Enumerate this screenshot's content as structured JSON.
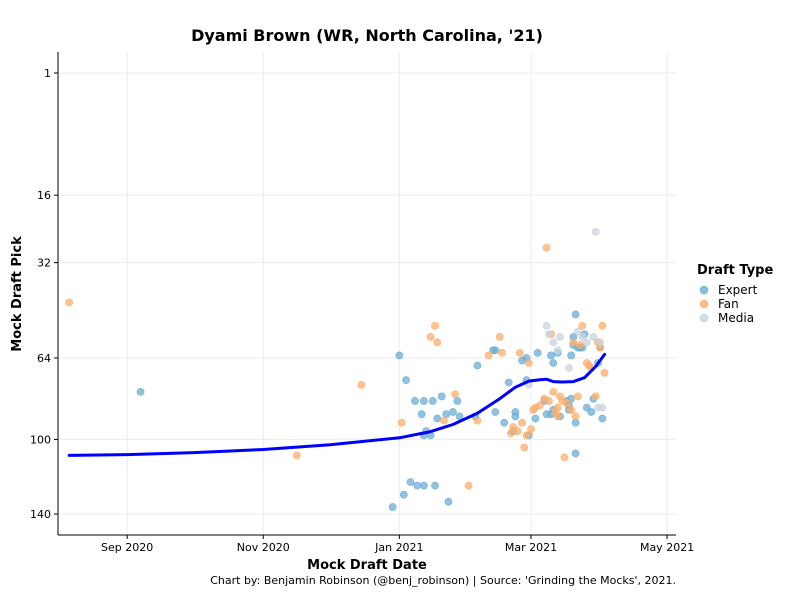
{
  "chart_data": {
    "type": "scatter",
    "title": "Dyami Brown (WR, North Carolina, '21)",
    "xlabel": "Mock Draft Date",
    "ylabel": "Mock Draft Pick",
    "caption": "Chart by: Benjamin Robinson (@benj_robinson) | Source: 'Grinding the Mocks', 2021.",
    "y_scale": "sqrt",
    "y_reversed": true,
    "ylim": [
      140,
      1
    ],
    "y_ticks": [
      1,
      16,
      32,
      64,
      100,
      140
    ],
    "xlim": [
      "2020-08-01",
      "2021-05-05"
    ],
    "x_ticks": [
      {
        "date": "2020-09-01",
        "label": "Sep 2020"
      },
      {
        "date": "2020-11-01",
        "label": "Nov 2020"
      },
      {
        "date": "2021-01-01",
        "label": "Jan 2021"
      },
      {
        "date": "2021-03-01",
        "label": "Mar 2021"
      },
      {
        "date": "2021-05-01",
        "label": "May 2021"
      }
    ],
    "grid": true,
    "legend": {
      "title": "Draft Type",
      "placement": "right"
    },
    "series": [
      {
        "name": "Expert",
        "color": "#6BAED6",
        "points": [
          [
            "2020-09-07",
            78
          ],
          [
            "2021-01-12",
            82
          ],
          [
            "2021-01-20",
            80
          ],
          [
            "2021-01-27",
            82
          ],
          [
            "2021-02-04",
            89
          ],
          [
            "2021-02-05",
            67
          ],
          [
            "2021-02-12",
            61
          ],
          [
            "2021-02-13",
            61
          ],
          [
            "2021-02-13",
            87
          ],
          [
            "2021-02-17",
            92
          ],
          [
            "2021-02-19",
            74
          ],
          [
            "2021-02-21",
            96
          ],
          [
            "2021-02-22",
            89
          ],
          [
            "2021-02-22",
            87
          ],
          [
            "2021-02-25",
            65
          ],
          [
            "2021-02-27",
            73
          ],
          [
            "2021-02-27",
            64
          ],
          [
            "2021-02-28",
            98
          ],
          [
            "2021-03-03",
            90
          ],
          [
            "2021-03-04",
            62
          ],
          [
            "2021-03-07",
            82
          ],
          [
            "2021-03-08",
            88
          ],
          [
            "2021-03-10",
            63
          ],
          [
            "2021-03-10",
            88
          ],
          [
            "2021-03-11",
            86
          ],
          [
            "2021-03-11",
            66
          ],
          [
            "2021-03-13",
            62
          ],
          [
            "2021-03-14",
            89
          ],
          [
            "2021-03-17",
            82
          ],
          [
            "2021-03-18",
            84
          ],
          [
            "2021-03-18",
            86
          ],
          [
            "2021-03-19",
            63
          ],
          [
            "2021-03-19",
            81
          ],
          [
            "2021-03-20",
            56
          ],
          [
            "2021-03-20",
            59
          ],
          [
            "2021-03-21",
            48
          ],
          [
            "2021-03-21",
            92
          ],
          [
            "2021-03-21",
            107
          ],
          [
            "2021-03-22",
            60
          ],
          [
            "2021-03-23",
            60
          ],
          [
            "2021-03-24",
            60
          ],
          [
            "2021-03-25",
            55
          ],
          [
            "2021-03-26",
            85
          ],
          [
            "2021-03-28",
            87
          ],
          [
            "2021-03-29",
            81
          ],
          [
            "2021-03-31",
            66
          ],
          [
            "2021-04-01",
            60
          ],
          [
            "2021-04-02",
            90
          ],
          [
            "2021-01-01",
            63
          ],
          [
            "2021-01-04",
            73
          ],
          [
            "2021-01-08",
            82
          ],
          [
            "2021-01-11",
            88
          ],
          [
            "2021-01-12",
            98
          ],
          [
            "2021-01-13",
            96
          ],
          [
            "2021-01-15",
            98
          ],
          [
            "2021-01-16",
            82
          ],
          [
            "2021-01-18",
            90
          ],
          [
            "2021-01-22",
            88
          ],
          [
            "2021-01-25",
            87
          ],
          [
            "2021-01-28",
            89
          ],
          [
            "2020-12-29",
            136
          ],
          [
            "2021-01-03",
            129
          ],
          [
            "2021-01-06",
            122
          ],
          [
            "2021-01-09",
            124
          ],
          [
            "2021-01-12",
            124
          ],
          [
            "2021-01-17",
            124
          ],
          [
            "2021-01-23",
            133
          ]
        ]
      },
      {
        "name": "Fan",
        "color": "#FDAE6B",
        "points": [
          [
            "2020-08-06",
            44
          ],
          [
            "2020-11-16",
            108
          ],
          [
            "2020-12-15",
            75
          ],
          [
            "2021-01-02",
            92
          ],
          [
            "2021-01-15",
            56
          ],
          [
            "2021-01-17",
            52
          ],
          [
            "2021-01-18",
            58
          ],
          [
            "2021-01-26",
            79
          ],
          [
            "2021-02-01",
            124
          ],
          [
            "2021-02-10",
            63
          ],
          [
            "2021-02-15",
            56
          ],
          [
            "2021-02-16",
            62
          ],
          [
            "2021-02-21",
            94
          ],
          [
            "2021-02-23",
            96
          ],
          [
            "2021-02-25",
            92
          ],
          [
            "2021-02-26",
            104
          ],
          [
            "2021-02-27",
            98
          ],
          [
            "2021-03-01",
            95
          ],
          [
            "2021-03-02",
            86
          ],
          [
            "2021-03-03",
            85
          ],
          [
            "2021-03-05",
            84
          ],
          [
            "2021-03-07",
            81
          ],
          [
            "2021-03-08",
            28
          ],
          [
            "2021-03-09",
            82
          ],
          [
            "2021-03-10",
            55
          ],
          [
            "2021-03-11",
            78
          ],
          [
            "2021-03-12",
            87
          ],
          [
            "2021-03-13",
            89
          ],
          [
            "2021-03-13",
            85
          ],
          [
            "2021-03-14",
            80
          ],
          [
            "2021-03-15",
            82
          ],
          [
            "2021-03-16",
            109
          ],
          [
            "2021-03-17",
            83
          ],
          [
            "2021-03-19",
            86
          ],
          [
            "2021-03-20",
            58
          ],
          [
            "2021-03-21",
            89
          ],
          [
            "2021-03-22",
            80
          ],
          [
            "2021-03-23",
            59
          ],
          [
            "2021-03-24",
            52
          ],
          [
            "2021-03-26",
            66
          ],
          [
            "2021-03-27",
            67
          ],
          [
            "2021-03-28",
            68
          ],
          [
            "2021-03-30",
            80
          ],
          [
            "2021-03-31",
            58
          ],
          [
            "2021-04-01",
            60
          ],
          [
            "2021-04-02",
            52
          ],
          [
            "2021-04-03",
            70
          ],
          [
            "2021-02-24",
            62
          ],
          [
            "2021-02-28",
            66
          ],
          [
            "2021-01-21",
            91
          ],
          [
            "2021-02-05",
            91
          ],
          [
            "2021-02-20",
            97
          ]
        ]
      },
      {
        "name": "Media",
        "color": "#C9D3DE",
        "points": [
          [
            "2021-03-08",
            52
          ],
          [
            "2021-03-09",
            55
          ],
          [
            "2021-03-11",
            58
          ],
          [
            "2021-03-13",
            61
          ],
          [
            "2021-03-14",
            56
          ],
          [
            "2021-03-18",
            68
          ],
          [
            "2021-03-22",
            54
          ],
          [
            "2021-03-24",
            56
          ],
          [
            "2021-03-26",
            58
          ],
          [
            "2021-03-29",
            56
          ],
          [
            "2021-03-30",
            24
          ],
          [
            "2021-03-31",
            85
          ],
          [
            "2021-04-01",
            58
          ],
          [
            "2021-04-02",
            85
          ],
          [
            "2021-02-28",
            75
          ]
        ]
      }
    ],
    "trend_line": {
      "color": "#0000FF",
      "points": [
        [
          "2020-08-06",
          108.0
        ],
        [
          "2020-09-01",
          107.6
        ],
        [
          "2020-10-01",
          106.6
        ],
        [
          "2020-11-01",
          105.0
        ],
        [
          "2020-12-01",
          102.6
        ],
        [
          "2021-01-01",
          99.2
        ],
        [
          "2021-01-15",
          96.2
        ],
        [
          "2021-01-25",
          92.8
        ],
        [
          "2021-02-05",
          87.6
        ],
        [
          "2021-02-15",
          81.0
        ],
        [
          "2021-02-22",
          76.0
        ],
        [
          "2021-02-28",
          73.4
        ],
        [
          "2021-03-05",
          72.8
        ],
        [
          "2021-03-08",
          72.6
        ],
        [
          "2021-03-11",
          73.6
        ],
        [
          "2021-03-15",
          73.8
        ],
        [
          "2021-03-20",
          73.6
        ],
        [
          "2021-03-25",
          72.0
        ],
        [
          "2021-03-30",
          67.4
        ],
        [
          "2021-04-03",
          62.6
        ]
      ]
    }
  }
}
